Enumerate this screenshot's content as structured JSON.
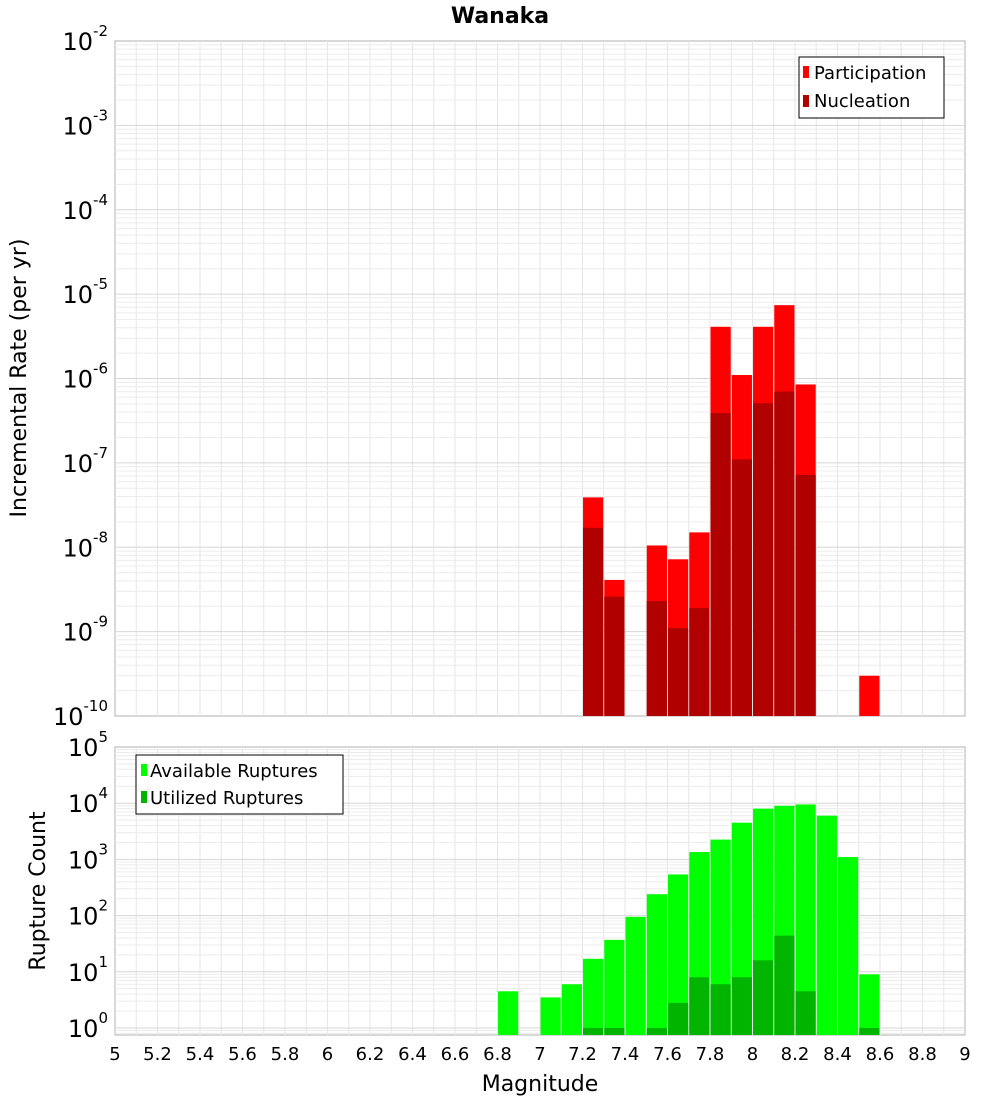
{
  "chart_data": [
    {
      "type": "bar",
      "title": "Wanaka",
      "ylabel": "Incremental Rate (per yr)",
      "xlabel": "",
      "xlim": [
        5,
        9
      ],
      "ylim": [
        1e-10,
        0.01
      ],
      "yscale": "log",
      "y_ticks": [
        {
          "base": "10",
          "exp": "-2",
          "value": 0.01
        },
        {
          "base": "10",
          "exp": "-3",
          "value": 0.001
        },
        {
          "base": "10",
          "exp": "-4",
          "value": 0.0001
        },
        {
          "base": "10",
          "exp": "-5",
          "value": 1e-05
        },
        {
          "base": "10",
          "exp": "-6",
          "value": 1e-06
        },
        {
          "base": "10",
          "exp": "-7",
          "value": 1e-07
        },
        {
          "base": "10",
          "exp": "-8",
          "value": 1e-08
        },
        {
          "base": "10",
          "exp": "-9",
          "value": 1e-09
        },
        {
          "base": "10",
          "exp": "-10",
          "value": 1e-10
        }
      ],
      "grid": true,
      "legend_position": "top-right",
      "series": [
        {
          "name": "Participation",
          "color": "#ff0000",
          "x": [
            7.25,
            7.35,
            7.55,
            7.65,
            7.75,
            7.85,
            7.95,
            8.05,
            8.15,
            8.25,
            8.55
          ],
          "values": [
            3.9e-08,
            4.1e-09,
            1.05e-08,
            7.2e-09,
            1.5e-08,
            4.1e-06,
            1.1e-06,
            4.1e-06,
            7.4e-06,
            8.5e-07,
            3e-10
          ]
        },
        {
          "name": "Nucleation",
          "color": "#b00000",
          "x": [
            7.25,
            7.35,
            7.55,
            7.65,
            7.75,
            7.85,
            7.95,
            8.05,
            8.15,
            8.25
          ],
          "values": [
            1.7e-08,
            2.6e-09,
            2.3e-09,
            1.1e-09,
            1.9e-09,
            3.9e-07,
            1.1e-07,
            5.1e-07,
            7e-07,
            7.2e-08
          ]
        }
      ]
    },
    {
      "type": "bar",
      "title": "",
      "ylabel": "Rupture Count",
      "xlabel": "Magnitude",
      "xlim": [
        5,
        9
      ],
      "ylim": [
        0.75,
        100000.0
      ],
      "yscale": "log",
      "y_ticks": [
        {
          "base": "10",
          "exp": "5",
          "value": 100000.0
        },
        {
          "base": "10",
          "exp": "4",
          "value": 10000.0
        },
        {
          "base": "10",
          "exp": "3",
          "value": 1000.0
        },
        {
          "base": "10",
          "exp": "2",
          "value": 100.0
        },
        {
          "base": "10",
          "exp": "1",
          "value": 10.0
        },
        {
          "base": "10",
          "exp": "0",
          "value": 1
        }
      ],
      "x_tick_labels": [
        "5",
        "5.2",
        "5.4",
        "5.6",
        "5.8",
        "6",
        "6.2",
        "6.4",
        "6.6",
        "6.8",
        "7",
        "7.2",
        "7.4",
        "7.6",
        "7.8",
        "8",
        "8.2",
        "8.4",
        "8.6",
        "8.8",
        "9"
      ],
      "grid": true,
      "legend_position": "top-left",
      "series": [
        {
          "name": "Available Ruptures",
          "color": "#00ff00",
          "x": [
            6.85,
            7.05,
            7.15,
            7.25,
            7.35,
            7.45,
            7.55,
            7.65,
            7.75,
            7.85,
            7.95,
            8.05,
            8.15,
            8.25,
            8.35,
            8.45,
            8.55
          ],
          "values": [
            4.5,
            3.5,
            6,
            17,
            37,
            95,
            240,
            540,
            1350,
            2250,
            4500,
            8000,
            9000,
            9500,
            6000,
            1100,
            9
          ]
        },
        {
          "name": "Utilized Ruptures",
          "color": "#00b400",
          "x": [
            7.25,
            7.35,
            7.55,
            7.65,
            7.75,
            7.85,
            7.95,
            8.05,
            8.15,
            8.25,
            8.55
          ],
          "values": [
            1,
            1,
            1,
            2.8,
            8,
            6,
            8,
            16,
            44,
            4.5,
            1
          ]
        }
      ]
    }
  ]
}
